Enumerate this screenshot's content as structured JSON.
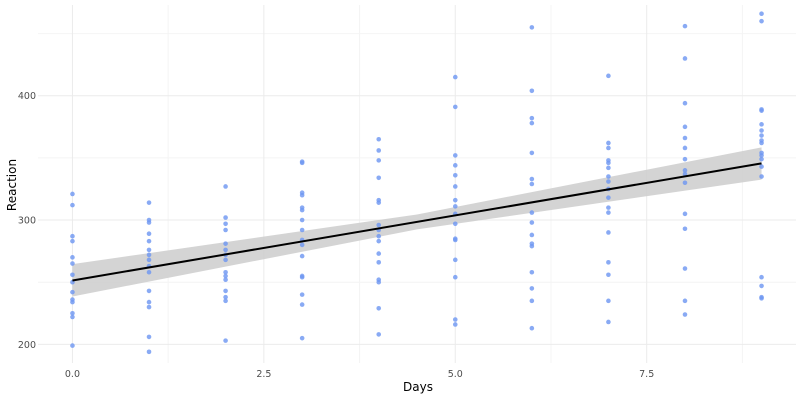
{
  "colors": {
    "points": "#6f97f2",
    "line": "#000000",
    "band": "#cccccc",
    "grid": "#ebebeb"
  },
  "chart_data": {
    "type": "scatter",
    "title": "",
    "xlabel": "Days",
    "ylabel": "Reaction",
    "xlim": [
      -0.45,
      9.45
    ],
    "ylim": [
      185,
      473
    ],
    "x_ticks": [
      0.0,
      2.5,
      5.0,
      7.5
    ],
    "x_tick_labels": [
      "0.0",
      "2.5",
      "5.0",
      "7.5"
    ],
    "y_ticks": [
      200,
      300,
      400
    ],
    "y_tick_labels": [
      "200",
      "300",
      "400"
    ],
    "grid": true,
    "legend": "none",
    "series": [
      {
        "type": "scatter",
        "points": [
          [
            0,
            199
          ],
          [
            0,
            222
          ],
          [
            0,
            225
          ],
          [
            0,
            234
          ],
          [
            0,
            236
          ],
          [
            0,
            242
          ],
          [
            0,
            250
          ],
          [
            0,
            256
          ],
          [
            0,
            265
          ],
          [
            0,
            270
          ],
          [
            0,
            283
          ],
          [
            0,
            287
          ],
          [
            0,
            312
          ],
          [
            0,
            321
          ],
          [
            1,
            194
          ],
          [
            1,
            206
          ],
          [
            1,
            230
          ],
          [
            1,
            234
          ],
          [
            1,
            243
          ],
          [
            1,
            258
          ],
          [
            1,
            263
          ],
          [
            1,
            268
          ],
          [
            1,
            272
          ],
          [
            1,
            276
          ],
          [
            1,
            283
          ],
          [
            1,
            289
          ],
          [
            1,
            298
          ],
          [
            1,
            300
          ],
          [
            1,
            314
          ],
          [
            2,
            203
          ],
          [
            2,
            235
          ],
          [
            2,
            238
          ],
          [
            2,
            243
          ],
          [
            2,
            252
          ],
          [
            2,
            255
          ],
          [
            2,
            258
          ],
          [
            2,
            268
          ],
          [
            2,
            272
          ],
          [
            2,
            276
          ],
          [
            2,
            281
          ],
          [
            2,
            292
          ],
          [
            2,
            297
          ],
          [
            2,
            302
          ],
          [
            2,
            327
          ],
          [
            3,
            205
          ],
          [
            3,
            232
          ],
          [
            3,
            240
          ],
          [
            3,
            254
          ],
          [
            3,
            255
          ],
          [
            3,
            271
          ],
          [
            3,
            280
          ],
          [
            3,
            284
          ],
          [
            3,
            292
          ],
          [
            3,
            300
          ],
          [
            3,
            308
          ],
          [
            3,
            310
          ],
          [
            3,
            320
          ],
          [
            3,
            322
          ],
          [
            3,
            346
          ],
          [
            3,
            347
          ],
          [
            4,
            208
          ],
          [
            4,
            229
          ],
          [
            4,
            250
          ],
          [
            4,
            252
          ],
          [
            4,
            266
          ],
          [
            4,
            273
          ],
          [
            4,
            283
          ],
          [
            4,
            287
          ],
          [
            4,
            292
          ],
          [
            4,
            296
          ],
          [
            4,
            314
          ],
          [
            4,
            316
          ],
          [
            4,
            334
          ],
          [
            4,
            348
          ],
          [
            4,
            356
          ],
          [
            4,
            365
          ],
          [
            5,
            216
          ],
          [
            5,
            220
          ],
          [
            5,
            254
          ],
          [
            5,
            268
          ],
          [
            5,
            284
          ],
          [
            5,
            285
          ],
          [
            5,
            297
          ],
          [
            5,
            305
          ],
          [
            5,
            311
          ],
          [
            5,
            316
          ],
          [
            5,
            327
          ],
          [
            5,
            336
          ],
          [
            5,
            344
          ],
          [
            5,
            352
          ],
          [
            5,
            391
          ],
          [
            5,
            415
          ],
          [
            6,
            213
          ],
          [
            6,
            235
          ],
          [
            6,
            245
          ],
          [
            6,
            258
          ],
          [
            6,
            279
          ],
          [
            6,
            281
          ],
          [
            6,
            288
          ],
          [
            6,
            298
          ],
          [
            6,
            306
          ],
          [
            6,
            329
          ],
          [
            6,
            333
          ],
          [
            6,
            354
          ],
          [
            6,
            378
          ],
          [
            6,
            382
          ],
          [
            6,
            404
          ],
          [
            6,
            455
          ],
          [
            7,
            218
          ],
          [
            7,
            235
          ],
          [
            7,
            256
          ],
          [
            7,
            266
          ],
          [
            7,
            290
          ],
          [
            7,
            306
          ],
          [
            7,
            310
          ],
          [
            7,
            318
          ],
          [
            7,
            325
          ],
          [
            7,
            331
          ],
          [
            7,
            335
          ],
          [
            7,
            342
          ],
          [
            7,
            346
          ],
          [
            7,
            348
          ],
          [
            7,
            358
          ],
          [
            7,
            362
          ],
          [
            7,
            416
          ],
          [
            8,
            224
          ],
          [
            8,
            235
          ],
          [
            8,
            261
          ],
          [
            8,
            293
          ],
          [
            8,
            305
          ],
          [
            8,
            330
          ],
          [
            8,
            337
          ],
          [
            8,
            340
          ],
          [
            8,
            349
          ],
          [
            8,
            358
          ],
          [
            8,
            366
          ],
          [
            8,
            375
          ],
          [
            8,
            394
          ],
          [
            8,
            430
          ],
          [
            8,
            456
          ],
          [
            9,
            237
          ],
          [
            9,
            238
          ],
          [
            9,
            247
          ],
          [
            9,
            254
          ],
          [
            9,
            335
          ],
          [
            9,
            343
          ],
          [
            9,
            349
          ],
          [
            9,
            352
          ],
          [
            9,
            354
          ],
          [
            9,
            362
          ],
          [
            9,
            364
          ],
          [
            9,
            368
          ],
          [
            9,
            372
          ],
          [
            9,
            377
          ],
          [
            9,
            388
          ],
          [
            9,
            389
          ],
          [
            9,
            460
          ],
          [
            9,
            466
          ]
        ]
      },
      {
        "type": "line",
        "x": [
          0,
          9
        ],
        "y": [
          251.4,
          345.6
        ]
      },
      {
        "type": "band",
        "x": [
          0,
          4.5,
          9
        ],
        "ymin": [
          238.5,
          292.5,
          332.5
        ],
        "ymax": [
          264.5,
          304.5,
          358.5
        ]
      }
    ]
  }
}
